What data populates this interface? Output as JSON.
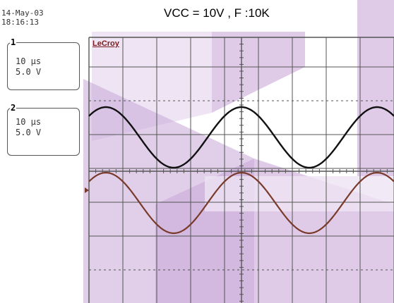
{
  "timestamp": {
    "date": "14-May-03",
    "time": "18:16:13"
  },
  "title": "VCC = 10V , F :10K",
  "brand": "LeCroy",
  "channels": [
    {
      "number": "1",
      "timebase": "10 μs",
      "volts": "5.0 V"
    },
    {
      "number": "2",
      "timebase": "10 μs",
      "volts": "5.0 V"
    }
  ],
  "colors": {
    "grid": "#555555",
    "trace1": "#111111",
    "trace2": "#7a3a2a",
    "overlay": "#c9a8d8",
    "overlay_light": "#eee4f3"
  },
  "traces": {
    "trace1": {
      "description": "sine wave, peak at center",
      "divisions_peak_to_peak": 1.8
    },
    "trace2": {
      "description": "sine wave, peak at center",
      "divisions_peak_to_peak": 1.8
    }
  },
  "icons": {
    "ground_marker": "triangle-right-marker"
  }
}
